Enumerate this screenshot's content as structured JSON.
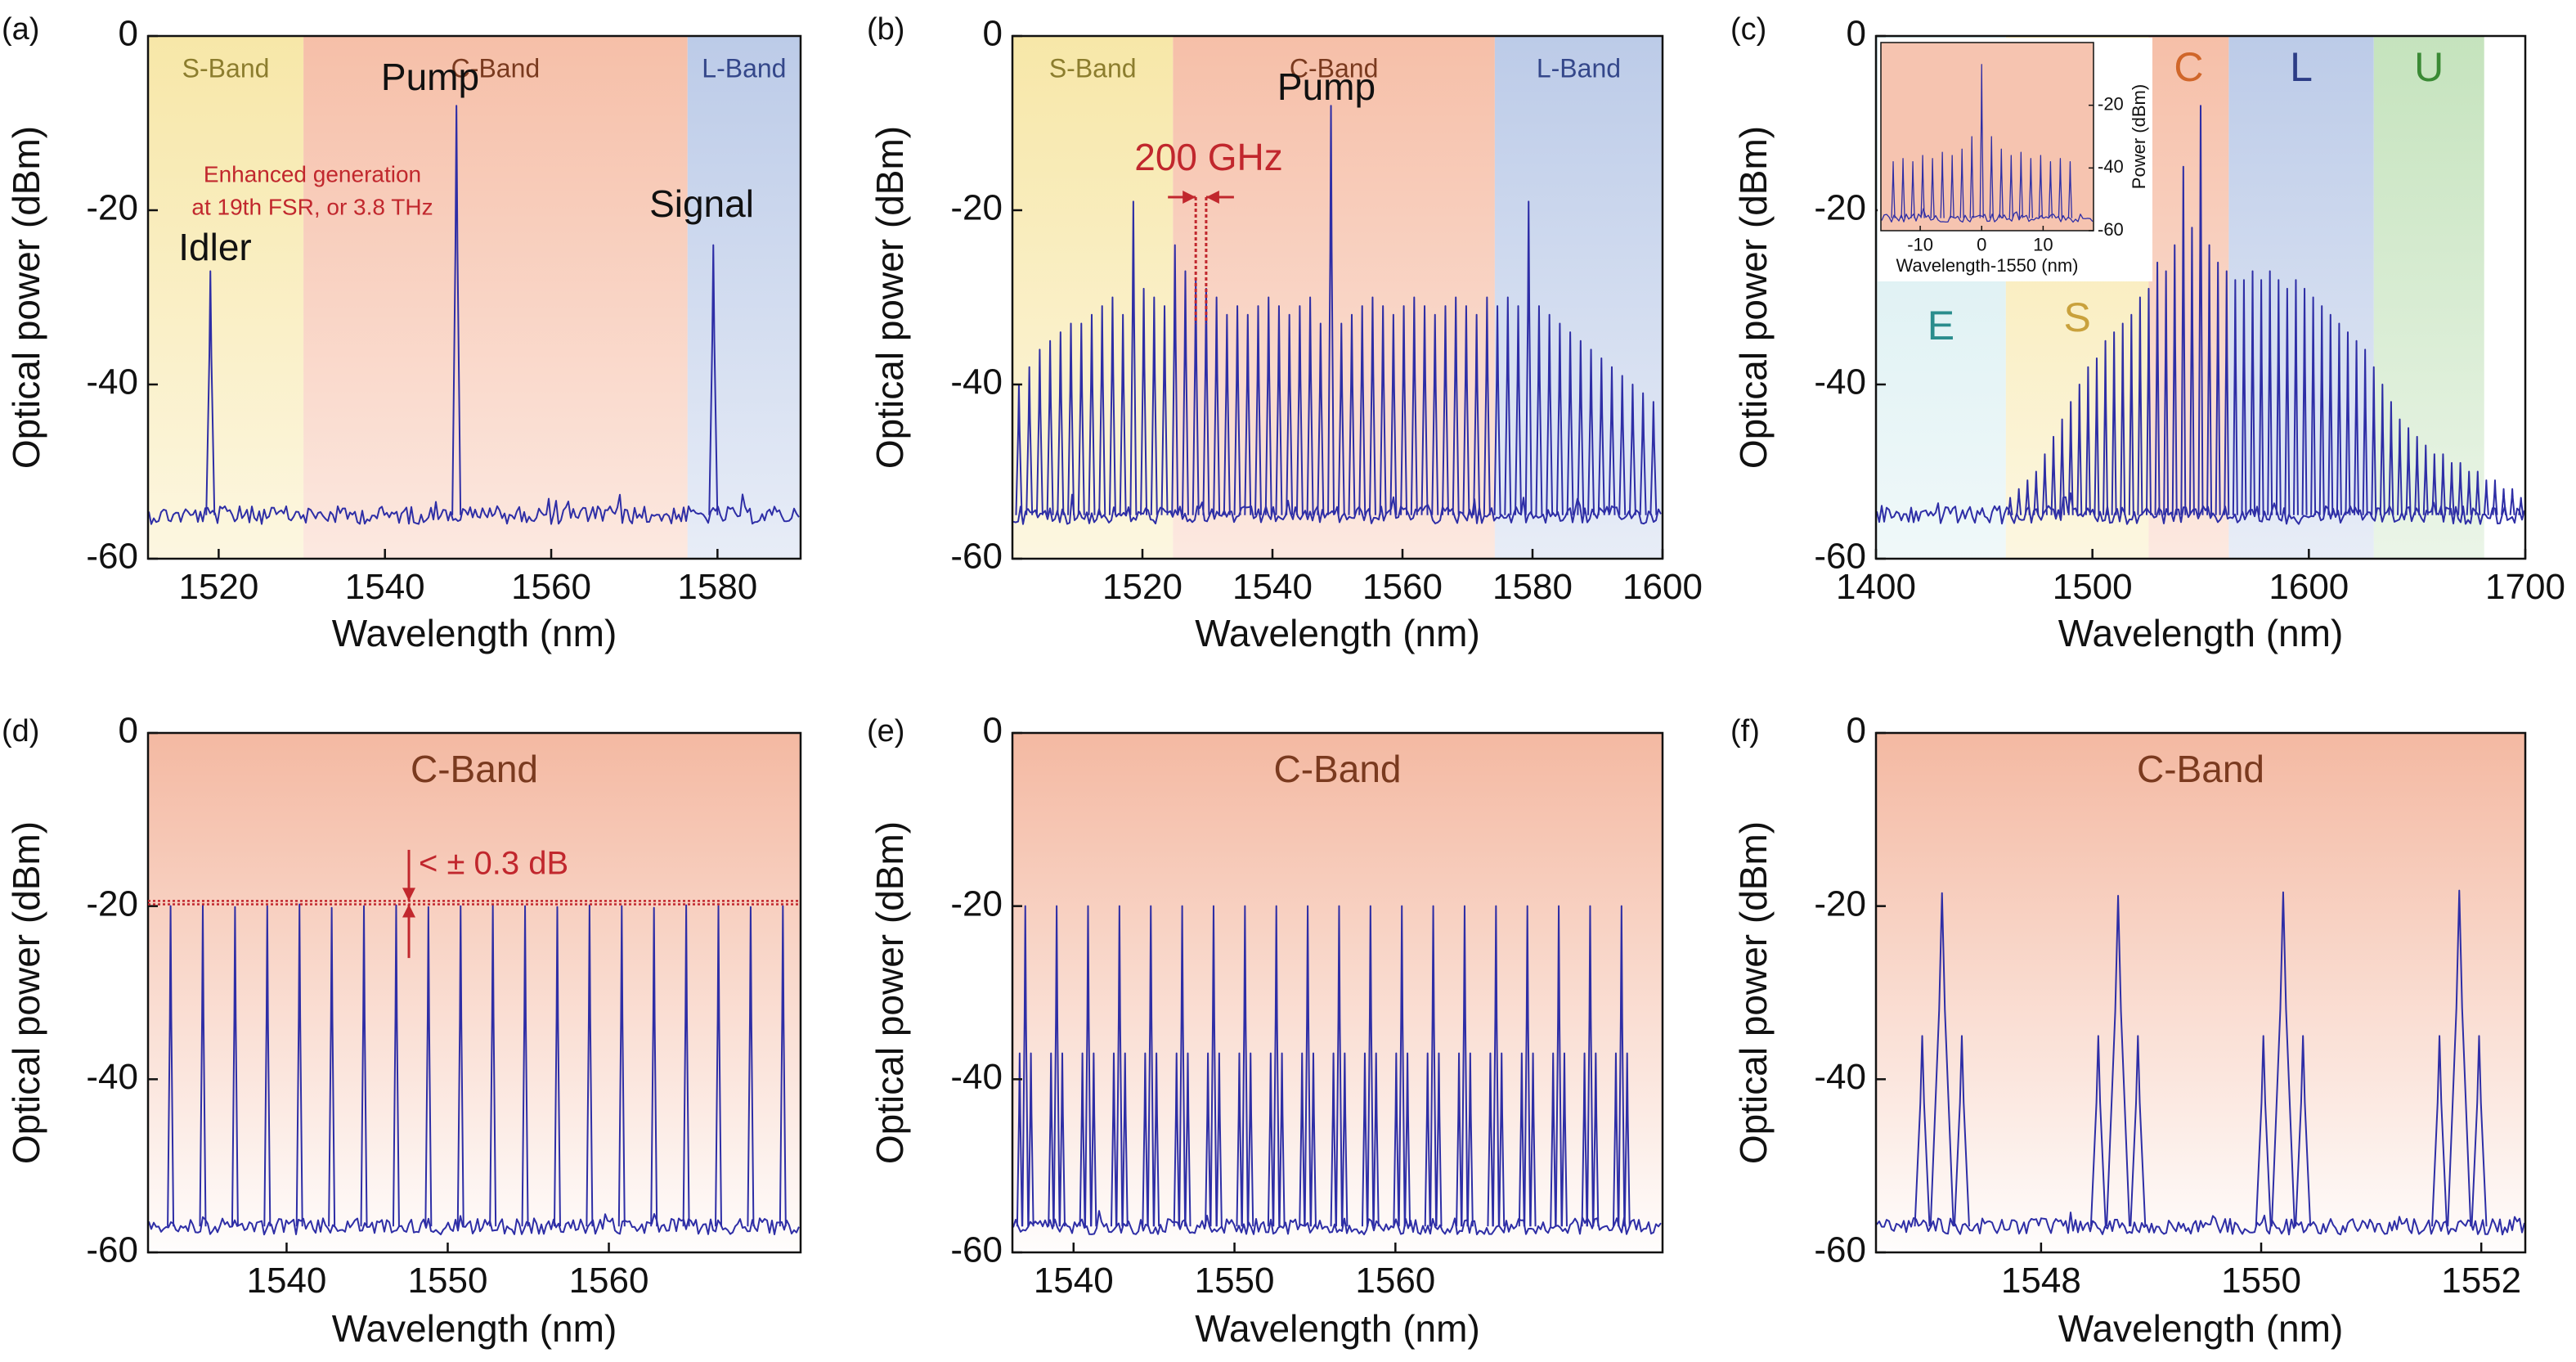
{
  "chart_data": [
    {
      "type": "spectrum",
      "panel_label": "(a)",
      "xlabel": "Wavelength (nm)",
      "ylabel": "Optical power (dBm)",
      "xlim": [
        1511.5,
        1590
      ],
      "ylim": [
        -60,
        0
      ],
      "xticks": [
        1520,
        1540,
        1560,
        1580
      ],
      "yticks": [
        0,
        -20,
        -40,
        -60
      ],
      "floor": -55,
      "bands": [
        {
          "name": "S-Band",
          "range": [
            1511.5,
            1530.2
          ],
          "color": "#f7e7a8",
          "label_color": "#8c7d2e"
        },
        {
          "name": "C-Band",
          "range": [
            1530.2,
            1576.4
          ],
          "color": "#f6bfa8",
          "label_color": "#7a3a1f"
        },
        {
          "name": "L-Band",
          "range": [
            1576.4,
            1590
          ],
          "color": "#bccbe8",
          "label_color": "#34478a"
        }
      ],
      "series": [
        {
          "color": "#2e2ea6",
          "x": [
            1519,
            1548.6,
            1579.5
          ],
          "values": [
            -27,
            -8,
            -24
          ]
        }
      ],
      "annotations": [
        "Pump",
        "Idler",
        "Signal",
        "Enhanced generation",
        "at 19th FSR, or 3.8 THz"
      ]
    },
    {
      "type": "spectrum",
      "panel_label": "(b)",
      "xlabel": "Wavelength (nm)",
      "ylabel": "Optical power (dBm)",
      "xlim": [
        1500,
        1600
      ],
      "ylim": [
        -60,
        0
      ],
      "xticks": [
        1520,
        1540,
        1560,
        1580,
        1600
      ],
      "yticks": [
        0,
        -20,
        -40,
        -60
      ],
      "floor": -55,
      "bands": [
        {
          "name": "S-Band",
          "range": [
            1500,
            1524.7
          ],
          "color": "#f7e7a8",
          "label_color": "#8c7d2e"
        },
        {
          "name": "C-Band",
          "range": [
            1524.7,
            1574.2
          ],
          "color": "#f6bfa8",
          "label_color": "#7a3a1f"
        },
        {
          "name": "L-Band",
          "range": [
            1574.2,
            1600
          ],
          "color": "#bccbe8",
          "label_color": "#34478a"
        }
      ],
      "series": [
        {
          "color": "#2e2ea6",
          "x": [
            1501.0,
            1502.6,
            1504.2,
            1505.8,
            1507.4,
            1509.0,
            1510.6,
            1512.2,
            1513.8,
            1515.4,
            1517.0,
            1518.6,
            1520.2,
            1521.8,
            1523.4,
            1525.0,
            1526.6,
            1528.2,
            1529.8,
            1531.4,
            1533.0,
            1534.6,
            1536.2,
            1537.8,
            1539.4,
            1541.0,
            1542.6,
            1544.2,
            1545.8,
            1547.4,
            1549.0,
            1550.6,
            1552.2,
            1553.8,
            1555.4,
            1557.0,
            1558.6,
            1560.2,
            1561.8,
            1563.4,
            1565.0,
            1566.6,
            1568.2,
            1569.8,
            1571.4,
            1573.0,
            1574.6,
            1576.2,
            1577.8,
            1579.4,
            1581.0,
            1582.6,
            1584.2,
            1585.8,
            1587.4,
            1589.0,
            1590.6,
            1592.2,
            1593.8,
            1595.4,
            1597.0,
            1598.6
          ],
          "values": [
            -40,
            -38,
            -36,
            -35,
            -34,
            -33,
            -33,
            -32,
            -31,
            -30,
            -32,
            -19,
            -29,
            -30,
            -31,
            -24,
            -27,
            -28,
            -29,
            -30,
            -32,
            -31,
            -32,
            -31,
            -30,
            -31,
            -32,
            -31,
            -30,
            -33,
            -8,
            -33,
            -32,
            -31,
            -30,
            -31,
            -32,
            -31,
            -30,
            -31,
            -32,
            -31,
            -30,
            -31,
            -32,
            -30,
            -31,
            -30,
            -31,
            -19,
            -31,
            -32,
            -33,
            -34,
            -35,
            -36,
            -37,
            -38,
            -39,
            -40,
            -41,
            -42
          ]
        }
      ],
      "annotations": [
        "Pump",
        "200 GHz"
      ]
    },
    {
      "type": "spectrum",
      "panel_label": "(c)",
      "xlabel": "Wavelength (nm)",
      "ylabel": "Optical power (dBm)",
      "xlim": [
        1400,
        1700
      ],
      "ylim": [
        -60,
        0
      ],
      "xticks": [
        1400,
        1500,
        1600,
        1700
      ],
      "yticks": [
        0,
        -20,
        -40,
        -60
      ],
      "floor": -55,
      "bands": [
        {
          "name": "E",
          "range": [
            1400,
            1460
          ],
          "color": "#d3ecef",
          "label_color": "#2a8d8d"
        },
        {
          "name": "S",
          "range": [
            1460,
            1526
          ],
          "color": "#f7e7a8",
          "label_color": "#c9a13c"
        },
        {
          "name": "C",
          "range": [
            1526,
            1563
          ],
          "color": "#f6bfa8",
          "label_color": "#d0662a"
        },
        {
          "name": "L",
          "range": [
            1563,
            1630
          ],
          "color": "#bccbe8",
          "label_color": "#2d3d86"
        },
        {
          "name": "U",
          "range": [
            1630,
            1681
          ],
          "color": "#c5e3bd",
          "label_color": "#3b8a35"
        }
      ],
      "series": [
        {
          "color": "#2e2ea6",
          "x": [
            1462,
            1466,
            1470,
            1474,
            1478,
            1482,
            1486,
            1490,
            1494,
            1498,
            1502,
            1506,
            1510,
            1514,
            1518,
            1522,
            1526,
            1530,
            1534,
            1538,
            1542,
            1546,
            1550,
            1554,
            1558,
            1562,
            1566,
            1570,
            1574,
            1578,
            1582,
            1586,
            1590,
            1594,
            1598,
            1602,
            1606,
            1610,
            1614,
            1618,
            1622,
            1626,
            1630,
            1634,
            1638,
            1642,
            1646,
            1650,
            1654,
            1658,
            1662,
            1666,
            1670,
            1674,
            1678,
            1682,
            1686,
            1690,
            1694,
            1698
          ],
          "values": [
            -53,
            -52,
            -51,
            -50,
            -48,
            -46,
            -44,
            -42,
            -40,
            -38,
            -37,
            -35,
            -34,
            -33,
            -32,
            -30,
            -29,
            -26,
            -27,
            -24,
            -15,
            -22,
            -8,
            -24,
            -26,
            -27,
            -28,
            -28,
            -27,
            -28,
            -27,
            -28,
            -29,
            -28,
            -29,
            -30,
            -31,
            -32,
            -33,
            -34,
            -35,
            -36,
            -38,
            -40,
            -42,
            -44,
            -45,
            -46,
            -47,
            -48,
            -48,
            -49,
            -49,
            -50,
            -50,
            -51,
            -51,
            -52,
            -52,
            -53
          ]
        }
      ],
      "inset": {
        "type": "spectrum",
        "xlabel": "Wavelength-1550 (nm)",
        "ylabel": "Power (dBm)",
        "xlim": [
          -16.4,
          18.2
        ],
        "ylim": [
          -60,
          0
        ],
        "xticks": [
          -10,
          0,
          10
        ],
        "yticks": [
          -20,
          -40,
          -60
        ],
        "floor": -56,
        "series": [
          {
            "color": "#2e2ea6",
            "x": [
              -14.4,
              -12.8,
              -11.2,
              -9.6,
              -8.0,
              -6.4,
              -4.8,
              -3.2,
              -1.6,
              0,
              1.6,
              3.2,
              4.8,
              6.4,
              8.0,
              9.6,
              11.2,
              12.8,
              14.4
            ],
            "values": [
              -38,
              -37,
              -38,
              -36,
              -37,
              -35,
              -36,
              -34,
              -30,
              -7,
              -30,
              -34,
              -36,
              -35,
              -37,
              -36,
              -38,
              -37,
              -38
            ]
          }
        ]
      }
    },
    {
      "type": "spectrum",
      "panel_label": "(d)",
      "xlabel": "Wavelength (nm)",
      "ylabel": "Optical power (dBm)",
      "xlim": [
        1531.4,
        1571.9
      ],
      "ylim": [
        -60,
        0
      ],
      "xticks": [
        1540,
        1550,
        1560
      ],
      "yticks": [
        0,
        -20,
        -40,
        -60
      ],
      "floor": -57,
      "bands": [
        {
          "name": "C-Band",
          "range": [
            1531.4,
            1571.9
          ],
          "color": "#f4b9a2",
          "label_color": "#7a3a1f"
        }
      ],
      "series": [
        {
          "color": "#2e2ea6",
          "x": [
            1532.8,
            1534.8,
            1536.8,
            1538.8,
            1540.8,
            1542.8,
            1544.8,
            1546.8,
            1548.8,
            1550.8,
            1552.8,
            1554.8,
            1556.8,
            1558.8,
            1560.8,
            1562.8,
            1564.8,
            1566.8,
            1568.8,
            1570.8
          ],
          "values": [
            -20,
            -19.9,
            -20.1,
            -20,
            -19.8,
            -20.2,
            -20,
            -19.9,
            -20.1,
            -20,
            -19.8,
            -20,
            -20.1,
            -19.9,
            -20,
            -20.2,
            -19.9,
            -20,
            -20.1,
            -20
          ]
        }
      ],
      "ref_lines": [
        -19.4,
        -19.8
      ],
      "annotations": [
        "< ± 0.3 dB"
      ]
    },
    {
      "type": "spectrum",
      "panel_label": "(e)",
      "xlabel": "Wavelength (nm)",
      "ylabel": "Optical power (dBm)",
      "xlim": [
        1536.2,
        1576.6
      ],
      "ylim": [
        -60,
        0
      ],
      "xticks": [
        1540,
        1550,
        1560
      ],
      "yticks": [
        0,
        -20,
        -40,
        -60
      ],
      "floor": -57,
      "bands": [
        {
          "name": "C-Band",
          "range": [
            1536.2,
            1576.6
          ],
          "color": "#f4b9a2",
          "label_color": "#7a3a1f"
        }
      ],
      "series": [
        {
          "color": "#2e2ea6",
          "x": [
            1537.0,
            1538.95,
            1540.9,
            1542.85,
            1544.8,
            1546.75,
            1548.7,
            1550.65,
            1552.6,
            1554.55,
            1556.5,
            1558.45,
            1560.4,
            1562.35,
            1564.3,
            1566.25,
            1568.2,
            1570.15,
            1572.1,
            1574.05
          ],
          "values": [
            -20,
            -20,
            -20,
            -20,
            -20,
            -20,
            -20,
            -20,
            -20,
            -20,
            -20,
            -20,
            -20,
            -20,
            -20,
            -20,
            -20,
            -20,
            -20,
            -20
          ]
        },
        {
          "color": "#2e2ea6",
          "x": [
            1536.65,
            1537.35,
            1538.6,
            1539.3,
            1540.55,
            1541.25,
            1542.5,
            1543.2,
            1544.45,
            1545.15,
            1546.4,
            1547.1,
            1548.35,
            1549.05,
            1550.3,
            1551.0,
            1552.25,
            1552.95,
            1554.2,
            1554.9,
            1556.15,
            1556.85,
            1558.1,
            1558.8,
            1560.05,
            1560.75,
            1562.0,
            1562.7,
            1563.95,
            1564.65,
            1565.9,
            1566.6,
            1567.85,
            1568.55,
            1569.8,
            1570.5,
            1571.75,
            1572.45,
            1573.7,
            1574.4
          ],
          "values": [
            -37,
            -37,
            -37,
            -37,
            -37,
            -37,
            -37,
            -37,
            -37,
            -37,
            -37,
            -37,
            -37,
            -37,
            -37,
            -37,
            -37,
            -37,
            -37,
            -37,
            -37,
            -37,
            -37,
            -37,
            -37,
            -37,
            -37,
            -37,
            -37,
            -37,
            -37,
            -37,
            -37,
            -37,
            -37,
            -37,
            -37,
            -37,
            -37,
            -37
          ]
        }
      ]
    },
    {
      "type": "spectrum",
      "panel_label": "(f)",
      "xlabel": "Wavelength (nm)",
      "ylabel": "Optical power (dBm)",
      "xlim": [
        1546.5,
        1552.4
      ],
      "ylim": [
        -60,
        0
      ],
      "xticks": [
        1548,
        1550,
        1552
      ],
      "yticks": [
        0,
        -20,
        -40,
        -60
      ],
      "floor": -57,
      "bands": [
        {
          "name": "C-Band",
          "range": [
            1546.5,
            1552.4
          ],
          "color": "#f4b9a2",
          "label_color": "#7a3a1f"
        }
      ],
      "series": [
        {
          "color": "#2e2ea6",
          "x": [
            1547.1,
            1548.7,
            1550.2,
            1551.8
          ],
          "values": [
            -18.5,
            -18.8,
            -18.4,
            -18.2
          ]
        },
        {
          "color": "#2e2ea6",
          "x": [
            1546.92,
            1547.28,
            1548.52,
            1548.88,
            1550.02,
            1550.38,
            1551.62,
            1551.98
          ],
          "values": [
            -35,
            -35,
            -35,
            -35,
            -35,
            -35,
            -35,
            -35
          ]
        }
      ]
    }
  ]
}
